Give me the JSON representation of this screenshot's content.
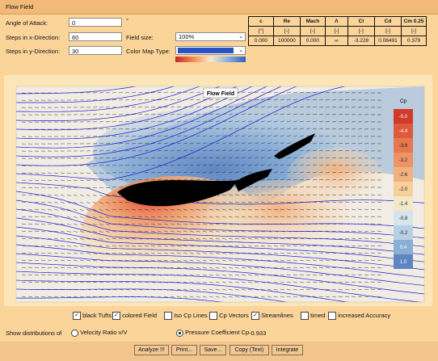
{
  "window": {
    "title": "Flow Field"
  },
  "controls": {
    "angle_label": "Angle of Attack:",
    "angle_value": "0",
    "angle_unit": "°",
    "steps_x_label": "Steps in x-Direction:",
    "steps_x_value": "60",
    "steps_y_label": "Steps in y-Direction:",
    "steps_y_value": "30",
    "field_size_label": "Field size:",
    "field_size_value": "100%",
    "colormap_label": "Color Map Type:"
  },
  "params_table": {
    "headers": [
      "c",
      "Re",
      "Mach",
      "Λ",
      "Cl",
      "Cd",
      "Cm 0.25"
    ],
    "units": [
      "[°]",
      "[-]",
      "[-]",
      "[-]",
      "[-]",
      "[-]",
      "[-]"
    ],
    "values": [
      "0.000",
      "100000",
      "0.000",
      "∞",
      "-3.228",
      "0.08491",
      "0.379"
    ]
  },
  "plot": {
    "title": "Flow Field",
    "legend_title": "Cp",
    "legend_values": [
      "-5.0",
      "-4.4",
      "-3.8",
      "-3.2",
      "-2.6",
      "-2.0",
      "-1.4",
      "-0.8",
      "-0.2",
      "0.4",
      "1.0"
    ],
    "legend_colors": [
      "#d23a2a",
      "#dd5a3c",
      "#e6774f",
      "#ed9465",
      "#f2b27f",
      "#f6d09c",
      "#f2e7c7",
      "#d6e4ec",
      "#b8d0e6",
      "#8aaed6",
      "#5f86c2"
    ],
    "colors": {
      "background": "#f2ede4",
      "airfoil": "#000000",
      "streamline": "#1a1ad0",
      "vector": "#222222"
    }
  },
  "options": {
    "black_tufts": {
      "label": "black Tufts",
      "checked": true
    },
    "colored_field": {
      "label": "colored Field",
      "checked": true
    },
    "iso_cp": {
      "label": "Iso Cp Lines",
      "checked": false
    },
    "cp_vectors": {
      "label": "Cp Vectors",
      "checked": false
    },
    "streamlines": {
      "label": "Streamlines",
      "checked": true
    },
    "timed": {
      "label": "timed",
      "checked": false
    },
    "accuracy": {
      "label": "increased Accuracy",
      "checked": false
    }
  },
  "distribution": {
    "label": "Show distributions of",
    "velocity_label": "Velocity Ratio v/V",
    "cp_label": "Pressure Coefficient Cp",
    "cp_value": "-0.933"
  },
  "buttons": {
    "analyze": "Analyze !!!",
    "print": "Print...",
    "save": "Save...",
    "copy": "Copy (Text)",
    "integrate": "Integrate"
  }
}
